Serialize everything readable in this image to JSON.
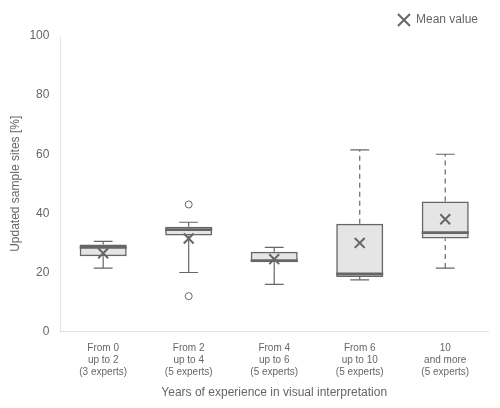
{
  "chart_data": {
    "type": "box",
    "categories": [
      "From 0\nup to 2\n(3 experts)",
      "From 2\nup to 4\n(5 experts)",
      "From 4\nup to 6\n(5 experts)",
      "From 6\nup to 10\n(5 experts)",
      "10\nand more\n(5 experts)"
    ],
    "boxes": [
      {
        "whislo": 21.5,
        "q1": 25.5,
        "med": 28.5,
        "q3": 29.5,
        "whishi": 30.5,
        "fliers": [],
        "line_style": "solid"
      },
      {
        "whislo": 20.0,
        "q1": 32.5,
        "med": 34.5,
        "q3": 35.5,
        "whishi": 37.0,
        "fliers": [
          43.0,
          12.0
        ],
        "line_style": "solid"
      },
      {
        "whislo": 16.0,
        "q1": 23.5,
        "med": 24.0,
        "q3": 27.0,
        "whishi": 28.5,
        "fliers": [],
        "line_style": "solid"
      },
      {
        "whislo": 17.5,
        "q1": 18.5,
        "med": 19.5,
        "q3": 36.5,
        "whishi": 61.5,
        "fliers": [],
        "line_style": "dashed"
      },
      {
        "whislo": 21.5,
        "q1": 31.5,
        "med": 33.5,
        "q3": 44.0,
        "whishi": 60.0,
        "fliers": [],
        "line_style": "dashed"
      }
    ],
    "series": [
      {
        "name": "Mean value",
        "marker": "x",
        "values": [
          26.5,
          31.5,
          24.5,
          30.0,
          38.0
        ]
      }
    ],
    "xlabel": "Years of experience in visual interpretation",
    "ylabel": "Updated sample sites [%]",
    "ylim": [
      0,
      100
    ],
    "yticks": [
      0,
      20,
      40,
      60,
      80,
      100
    ],
    "grid": false,
    "legend": "upper right"
  }
}
